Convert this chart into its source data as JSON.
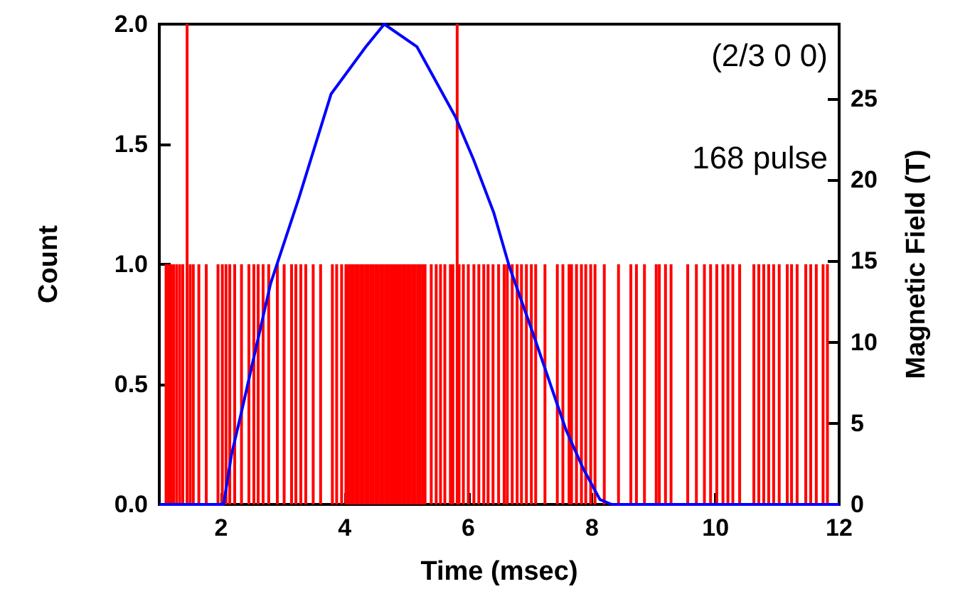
{
  "chart_data": {
    "type": "bar",
    "xlabel": "Time (msec)",
    "ylabel": "Count",
    "y2label": "Magnetic Field (T)",
    "annotations": [
      "(2/3 0 0)",
      "168 pulse"
    ],
    "xlim": [
      1,
      12
    ],
    "xticks": [
      2,
      4,
      6,
      8,
      10,
      12
    ],
    "ylim": [
      0,
      2
    ],
    "yticks": [
      {
        "value": 0,
        "label": "0.0"
      },
      {
        "value": 0.5,
        "label": "0.5"
      },
      {
        "value": 1,
        "label": "1.0"
      },
      {
        "value": 1.5,
        "label": "1.5"
      },
      {
        "value": 2,
        "label": "2.0"
      }
    ],
    "y2lim": [
      0,
      29.6
    ],
    "y2ticks": [
      0,
      5,
      10,
      15,
      20,
      25
    ],
    "grid": false,
    "series": [
      {
        "color": "#ff0000",
        "x": [
          1.11,
          1.15,
          1.19,
          1.23,
          1.28,
          1.33,
          1.38,
          1.45,
          1.5,
          1.55,
          1.64,
          1.76,
          1.95,
          2.02,
          2.08,
          2.14,
          2.22,
          2.33,
          2.45,
          2.53,
          2.6,
          2.68,
          2.77,
          2.91,
          3.02,
          3.14,
          3.21,
          3.29,
          3.37,
          3.49,
          3.61,
          3.8,
          3.87,
          3.95,
          4.02,
          4.06,
          4.1,
          4.14,
          4.18,
          4.22,
          4.26,
          4.3,
          4.34,
          4.38,
          4.42,
          4.46,
          4.5,
          4.54,
          4.58,
          4.62,
          4.66,
          4.7,
          4.74,
          4.78,
          4.82,
          4.86,
          4.9,
          4.94,
          4.98,
          5.02,
          5.06,
          5.1,
          5.14,
          5.18,
          5.22,
          5.26,
          5.3,
          5.4,
          5.48,
          5.55,
          5.62,
          5.71,
          5.75,
          5.82,
          5.85,
          5.92,
          6.0,
          6.09,
          6.17,
          6.25,
          6.32,
          6.4,
          6.49,
          6.58,
          6.63,
          6.71,
          6.79,
          6.86,
          6.94,
          7.02,
          7.09,
          7.24,
          7.44,
          7.53,
          7.63,
          7.67,
          7.75,
          7.83,
          7.9,
          7.98,
          8.05,
          8.2,
          8.43,
          8.63,
          8.72,
          8.85,
          9.04,
          9.09,
          9.19,
          9.28,
          9.55,
          9.69,
          9.82,
          9.92,
          10.02,
          10.12,
          10.2,
          10.28,
          10.39,
          10.62,
          10.7,
          10.78,
          10.86,
          10.94,
          11.03,
          11.16,
          11.23,
          11.32,
          11.46,
          11.54,
          11.63,
          11.74,
          11.81
        ],
        "values": [
          1,
          1,
          1,
          1,
          1,
          1,
          1,
          2,
          1,
          1,
          1,
          1,
          1,
          1,
          1,
          1,
          1,
          1,
          1,
          1,
          1,
          1,
          1,
          1,
          1,
          1,
          1,
          1,
          1,
          1,
          1,
          1,
          1,
          1,
          1,
          1,
          1,
          1,
          1,
          1,
          1,
          1,
          1,
          1,
          1,
          1,
          1,
          1,
          1,
          1,
          1,
          1,
          1,
          1,
          1,
          1,
          1,
          1,
          1,
          1,
          1,
          1,
          1,
          1,
          1,
          1,
          1,
          1,
          1,
          1,
          1,
          1,
          1,
          2,
          1,
          1,
          1,
          1,
          1,
          1,
          1,
          1,
          1,
          1,
          1,
          1,
          1,
          1,
          1,
          1,
          1,
          1,
          1,
          1,
          1,
          1,
          1,
          1,
          1,
          1,
          1,
          1,
          1,
          1,
          1,
          1,
          1,
          1,
          1,
          1,
          1,
          1,
          1,
          1,
          1,
          1,
          1,
          1,
          1,
          1,
          1,
          1,
          1,
          1,
          1,
          1,
          1,
          1,
          1,
          1,
          1,
          1,
          1
        ]
      },
      {
        "type": "line",
        "axis": "y2",
        "color": "#0000ff",
        "marker": "none",
        "x": [
          1,
          2.04,
          2.17,
          2.33,
          2.52,
          2.8,
          3.26,
          3.78,
          4.34,
          4.64,
          5.17,
          5.79,
          6.09,
          6.41,
          6.66,
          7.05,
          7.4,
          7.58,
          7.86,
          8.13,
          8.32,
          12
        ],
        "values": [
          0,
          0,
          3.1,
          5.7,
          8.9,
          13.6,
          18.9,
          25.3,
          28.2,
          29.6,
          28.2,
          23.9,
          21.2,
          18,
          14.7,
          10.5,
          6.6,
          4.6,
          2.2,
          0.3,
          0,
          0
        ]
      }
    ]
  }
}
